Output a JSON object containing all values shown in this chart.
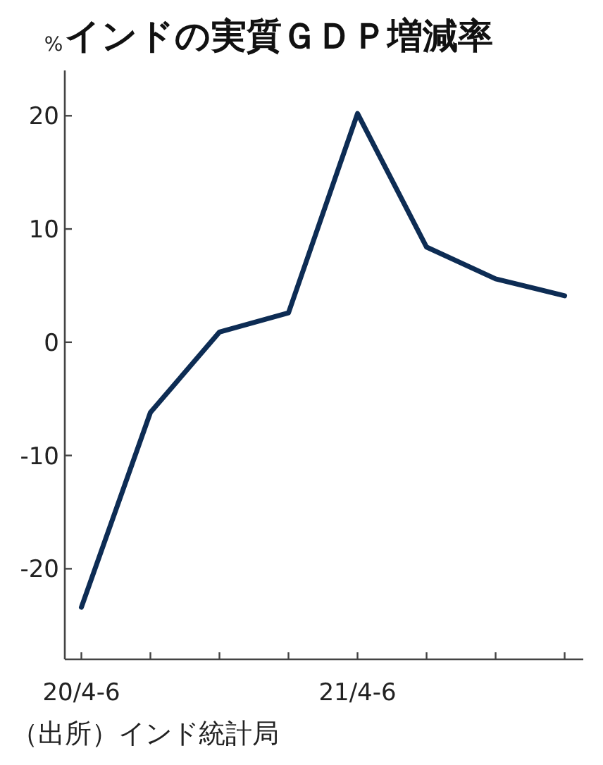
{
  "chart_data": {
    "type": "line",
    "title": "インドの実質ＧＤＰ増減率",
    "ylabel": "%",
    "categories": [
      "20/4-6",
      null,
      null,
      null,
      "21/4-6",
      null,
      null,
      null
    ],
    "series": [
      {
        "color": "#0d2c54",
        "values": [
          -23.4,
          -6.2,
          0.9,
          2.6,
          20.2,
          8.4,
          5.6,
          4.1
        ]
      }
    ],
    "ylim": [
      -28,
      24
    ],
    "yticks": [
      -20,
      -10,
      0,
      10,
      20
    ],
    "annotations": [
      "（出所）インド統計局"
    ]
  }
}
